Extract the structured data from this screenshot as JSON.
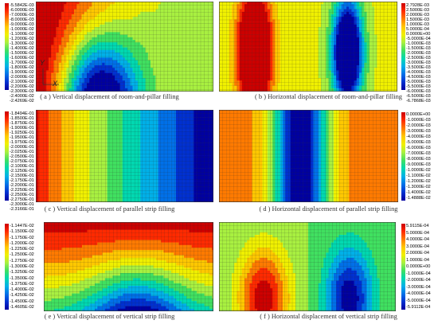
{
  "panels": [
    {
      "caption": "( a )  Vertical displacement of room-and-pillar filling",
      "legend": [
        "-5.5842E-03",
        "-6.0000E-03",
        "-7.0000E-03",
        "-8.0000E-03",
        "-9.0000E-03",
        "-1.0000E-02",
        "-1.1000E-02",
        "-1.2000E-02",
        "-1.3000E-02",
        "-1.4000E-02",
        "-1.5000E-02",
        "-1.6000E-02",
        "-1.7000E-02",
        "-1.8000E-02",
        "-1.9000E-02",
        "-2.0000E-02",
        "-2.1000E-02",
        "-2.2000E-02",
        "-2.3000E-02",
        "-2.4000E-02",
        "-2.4269E-02"
      ],
      "legend_side": "left",
      "axis_labels": {
        "y": "Y",
        "x": "X"
      }
    },
    {
      "caption": "( b )  Horizontal displacement of room-and-pillar filling",
      "legend": [
        "2.7928E-03",
        "2.5000E-03",
        "2.0000E-03",
        "1.5000E-03",
        "1.0000E-03",
        "5.0000E-04",
        "0.0000E+00",
        "-5.0000E-04",
        "-1.0000E-03",
        "-1.5000E-03",
        "-2.0000E-03",
        "-2.5000E-03",
        "-3.0000E-03",
        "-3.5000E-03",
        "-4.0000E-03",
        "-4.5000E-03",
        "-5.0000E-03",
        "-5.5000E-03",
        "-6.0000E-03",
        "-6.5000E-03",
        "-6.7868E-03"
      ],
      "legend_side": "right"
    },
    {
      "caption": "( c )  Vertical displacement of parallel strip filling",
      "legend": [
        "-1.8494E-01",
        "-1.8500E-01",
        "-1.8750E-01",
        "-1.9000E-01",
        "-1.9250E-01",
        "-1.9500E-01",
        "-1.9750E-01",
        "-2.0000E-01",
        "-2.0250E-01",
        "-2.0500E-01",
        "-2.0750E-01",
        "-2.1000E-01",
        "-2.1250E-01",
        "-2.1500E-01",
        "-2.1750E-01",
        "-2.2000E-01",
        "-2.2250E-01",
        "-2.2500E-01",
        "-2.2750E-01",
        "-2.3000E-01",
        "-2.3166E-01"
      ],
      "legend_side": "left"
    },
    {
      "caption": "( d )  Horizontal displacement of parallel strip filling",
      "legend": [
        "0.0000E+00",
        "-1.0000E-03",
        "-2.0000E-03",
        "-3.0000E-03",
        "-4.0000E-03",
        "-5.0000E-03",
        "-6.0000E-03",
        "-7.0000E-03",
        "-8.0000E-03",
        "-9.0000E-03",
        "-1.0000E-02",
        "-1.1000E-02",
        "-1.2000E-02",
        "-1.3000E-02",
        "-1.4000E-02",
        "-1.4888E-02"
      ],
      "legend_side": "right"
    },
    {
      "caption": "( e )  Vertical displacement of vertical strip filling",
      "legend": [
        "-1.1447E-02",
        "-1.1500E-02",
        "-1.1750E-02",
        "-1.2000E-02",
        "-1.2250E-02",
        "-1.2500E-02",
        "-1.2750E-02",
        "-1.3000E-02",
        "-1.3250E-02",
        "-1.3500E-02",
        "-1.3750E-02",
        "-1.4000E-02",
        "-1.4250E-02",
        "-1.4500E-02",
        "-1.4605E-02"
      ],
      "legend_side": "left"
    },
    {
      "caption": "( f )  Horizontal displacement of vertical strip filling",
      "legend": [
        "5.9115E-04",
        "5.0000E-04",
        "4.0000E-04",
        "3.0000E-04",
        "2.0000E-04",
        "1.0000E-04",
        "0.0000E+00",
        "-1.0000E-04",
        "-2.0000E-04",
        "-3.0000E-04",
        "-4.0000E-04",
        "-5.0000E-04",
        "-5.9112E-04"
      ],
      "legend_side": "right"
    }
  ],
  "colors": {
    "contour_ramp": [
      "#cc0000",
      "#ff2a00",
      "#ff7a00",
      "#ffc800",
      "#f0f000",
      "#a8f040",
      "#40e060",
      "#00d8b0",
      "#00b0e8",
      "#0070e8",
      "#0030d0",
      "#0000a0"
    ],
    "mesh": "#2a2a2a"
  }
}
